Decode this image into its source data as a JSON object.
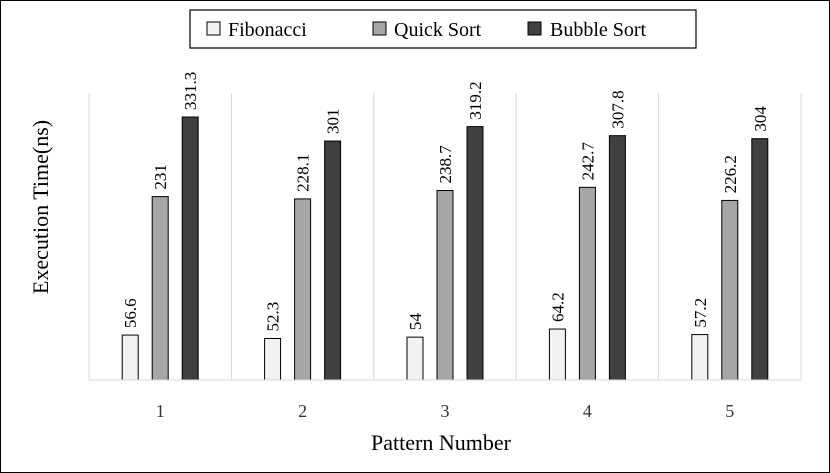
{
  "chart_data": {
    "type": "bar",
    "xlabel": "Pattern Number",
    "ylabel": "Execution Time(ns)",
    "categories": [
      "1",
      "2",
      "3",
      "4",
      "5"
    ],
    "ylim": [
      0,
      350
    ],
    "grid": "vertical category separators",
    "legend_position": "top-center",
    "series": [
      {
        "name": "Fibonacci",
        "color": "#f2f2f2",
        "values": [
          56.6,
          52.3,
          54,
          64.2,
          57.2
        ],
        "labels": [
          "56.6",
          "52.3",
          "54",
          "64.2",
          "57.2"
        ]
      },
      {
        "name": "Quick Sort",
        "color": "#a6a6a6",
        "values": [
          231,
          228.1,
          238.7,
          242.7,
          226.2
        ],
        "labels": [
          "231",
          "228.1",
          "238.7",
          "242.7",
          "226.2"
        ]
      },
      {
        "name": "Bubble Sort",
        "color": "#404040",
        "values": [
          331.3,
          301,
          319.2,
          307.8,
          304
        ],
        "labels": [
          "331.3",
          "301",
          "319.2",
          "307.8",
          "304"
        ]
      }
    ]
  }
}
